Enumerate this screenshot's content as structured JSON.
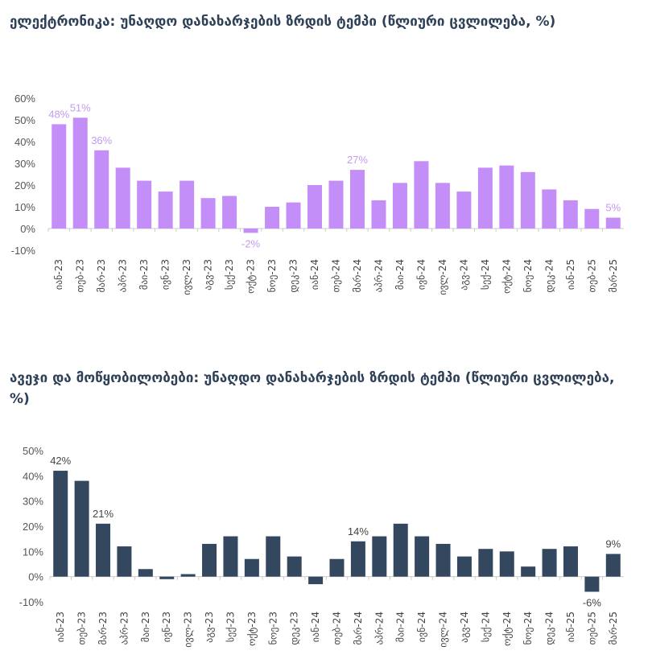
{
  "chart_data": [
    {
      "type": "bar",
      "title": "ელექტრონიკა: უნაღდო დანახარჯების ზრდის ტემპი (წლიური ცვლილება, %)",
      "categories": [
        "იან-23",
        "თებ-23",
        "მარ-23",
        "აპრ-23",
        "მაი-23",
        "ივნ-23",
        "ივლ-23",
        "აგვ-23",
        "სექ-23",
        "ოქტ-23",
        "ნოე-23",
        "დეკ-23",
        "იან-24",
        "თებ-24",
        "მარ-24",
        "აპრ-24",
        "მაი-24",
        "ივნ-24",
        "ივლ-24",
        "აგვ-24",
        "სექ-24",
        "ოქტ-24",
        "ნოე-24",
        "დეკ-24",
        "იან-25",
        "თებ-25",
        "მარ-25"
      ],
      "values": [
        48,
        51,
        36,
        28,
        22,
        17,
        22,
        14,
        15,
        -2,
        10,
        12,
        20,
        22,
        27,
        13,
        21,
        31,
        21,
        17,
        28,
        29,
        26,
        18,
        13,
        9,
        5
      ],
      "data_labels": {
        "0": "48%",
        "1": "51%",
        "2": "36%",
        "9": "-2%",
        "14": "27%",
        "26": "5%"
      },
      "yticks": [
        "60%",
        "50%",
        "40%",
        "30%",
        "20%",
        "10%",
        "0%",
        "-10%"
      ],
      "ylim": [
        -10,
        60
      ],
      "color": "#C48EF8",
      "label_color": "#C39BEF",
      "xlabel": "",
      "ylabel": ""
    },
    {
      "type": "bar",
      "title": "ავეჯი და მოწყობილობები: უნაღდო დანახარჯების ზრდის ტემპი (წლიური ცვლილება, %)",
      "categories": [
        "იან-23",
        "თებ-23",
        "მარ-23",
        "აპრ-23",
        "მაი-23",
        "ივნ-23",
        "ივლ-23",
        "აგვ-23",
        "სექ-23",
        "ოქტ-23",
        "ნოე-23",
        "დეკ-23",
        "იან-24",
        "თებ-24",
        "მარ-24",
        "აპრ-24",
        "მაი-24",
        "ივნ-24",
        "ივლ-24",
        "აგვ-24",
        "სექ-24",
        "ოქტ-24",
        "ნოე-24",
        "დეკ-24",
        "იან-25",
        "თებ-25",
        "მარ-25"
      ],
      "values": [
        42,
        38,
        21,
        12,
        3,
        -1,
        1,
        13,
        16,
        7,
        16,
        8,
        -3,
        7,
        14,
        16,
        21,
        16,
        13,
        8,
        11,
        10,
        4,
        11,
        12,
        -6,
        9
      ],
      "data_labels": {
        "0": "42%",
        "2": "21%",
        "14": "14%",
        "25": "-6%",
        "26": "9%"
      },
      "yticks": [
        "50%",
        "40%",
        "30%",
        "20%",
        "10%",
        "0%",
        "-10%"
      ],
      "ylim": [
        -10,
        50
      ],
      "color": "#33475F",
      "label_color": "#444444",
      "xlabel": "",
      "ylabel": ""
    }
  ]
}
